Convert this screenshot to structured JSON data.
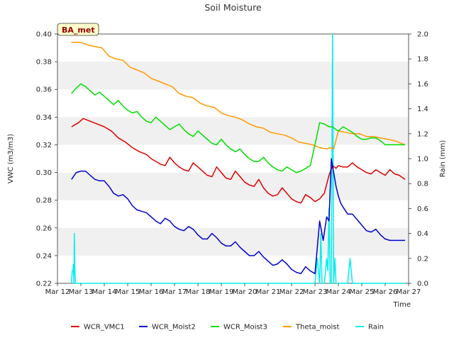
{
  "chart_data": {
    "type": "line",
    "title": "Soil Moisture",
    "site_label": "BA_met",
    "xlabel": "Time",
    "ylabel_left": "VWC (m3/m3)",
    "ylabel_right": "Rain (mm)",
    "x_ticks": [
      "Mar 12",
      "Mar 13",
      "Mar 14",
      "Mar 15",
      "Mar 16",
      "Mar 17",
      "Mar 18",
      "Mar 19",
      "Mar 20",
      "Mar 21",
      "Mar 22",
      "Mar 23",
      "Mar 24",
      "Mar 25",
      "Mar 26",
      "Mar 27"
    ],
    "xlim": [
      12,
      27
    ],
    "ylim_left": [
      0.22,
      0.4
    ],
    "y_ticks_left": [
      "0.22",
      "0.24",
      "0.26",
      "0.28",
      "0.30",
      "0.32",
      "0.34",
      "0.36",
      "0.38",
      "0.40"
    ],
    "ylim_right": [
      0.0,
      2.0
    ],
    "y_ticks_right": [
      "0.0",
      "0.2",
      "0.4",
      "0.6",
      "0.8",
      "1.0",
      "1.2",
      "1.4",
      "1.6",
      "1.8",
      "2.0"
    ],
    "grid": "horizontal bands",
    "legend_position": "bottom",
    "series": [
      {
        "name": "WCR_VMC1",
        "color": "#dd0000",
        "axis": "left",
        "x": [
          12.6,
          12.9,
          13.1,
          13.4,
          13.7,
          14.0,
          14.3,
          14.6,
          14.9,
          15.2,
          15.5,
          15.8,
          16.0,
          16.2,
          16.4,
          16.6,
          16.8,
          17.0,
          17.2,
          17.4,
          17.6,
          17.8,
          18.0,
          18.2,
          18.4,
          18.6,
          18.8,
          19.0,
          19.2,
          19.4,
          19.6,
          19.8,
          20.0,
          20.2,
          20.4,
          20.6,
          20.8,
          21.0,
          21.2,
          21.4,
          21.6,
          21.8,
          22.0,
          22.2,
          22.4,
          22.6,
          22.8,
          23.0,
          23.2,
          23.4,
          23.6,
          23.75,
          23.9,
          24.0,
          24.2,
          24.4,
          24.6,
          24.8,
          25.0,
          25.2,
          25.4,
          25.6,
          25.8,
          26.0,
          26.2,
          26.4,
          26.6,
          26.85
        ],
        "y": [
          0.333,
          0.336,
          0.339,
          0.337,
          0.335,
          0.333,
          0.33,
          0.325,
          0.322,
          0.318,
          0.315,
          0.313,
          0.31,
          0.308,
          0.306,
          0.305,
          0.311,
          0.307,
          0.304,
          0.302,
          0.301,
          0.307,
          0.304,
          0.301,
          0.298,
          0.297,
          0.304,
          0.3,
          0.296,
          0.295,
          0.301,
          0.297,
          0.293,
          0.291,
          0.29,
          0.295,
          0.289,
          0.285,
          0.283,
          0.284,
          0.289,
          0.285,
          0.281,
          0.279,
          0.278,
          0.284,
          0.282,
          0.279,
          0.281,
          0.285,
          0.298,
          0.305,
          0.303,
          0.305,
          0.304,
          0.304,
          0.307,
          0.304,
          0.302,
          0.3,
          0.299,
          0.302,
          0.3,
          0.298,
          0.302,
          0.299,
          0.298,
          0.295
        ]
      },
      {
        "name": "WCR_Moist2",
        "color": "#0000cc",
        "axis": "left",
        "x": [
          12.6,
          12.8,
          13.0,
          13.2,
          13.4,
          13.6,
          13.8,
          14.0,
          14.2,
          14.4,
          14.6,
          14.8,
          15.0,
          15.2,
          15.4,
          15.6,
          15.8,
          16.0,
          16.2,
          16.4,
          16.6,
          16.8,
          17.0,
          17.2,
          17.4,
          17.6,
          17.8,
          18.0,
          18.2,
          18.4,
          18.6,
          18.8,
          19.0,
          19.2,
          19.4,
          19.6,
          19.8,
          20.0,
          20.2,
          20.4,
          20.6,
          20.8,
          21.0,
          21.2,
          21.4,
          21.6,
          21.8,
          22.0,
          22.2,
          22.4,
          22.6,
          22.8,
          23.0,
          23.2,
          23.35,
          23.5,
          23.6,
          23.7,
          23.8,
          23.9,
          24.0,
          24.1,
          24.2,
          24.4,
          24.6,
          24.8,
          25.0,
          25.2,
          25.4,
          25.6,
          25.8,
          26.0,
          26.2,
          26.4,
          26.6,
          26.85
        ],
        "y": [
          0.295,
          0.3,
          0.301,
          0.301,
          0.298,
          0.295,
          0.294,
          0.294,
          0.29,
          0.285,
          0.283,
          0.284,
          0.281,
          0.276,
          0.273,
          0.272,
          0.271,
          0.268,
          0.265,
          0.263,
          0.267,
          0.265,
          0.261,
          0.259,
          0.258,
          0.261,
          0.259,
          0.255,
          0.252,
          0.252,
          0.256,
          0.253,
          0.249,
          0.247,
          0.247,
          0.25,
          0.246,
          0.243,
          0.24,
          0.24,
          0.243,
          0.239,
          0.236,
          0.233,
          0.234,
          0.237,
          0.234,
          0.23,
          0.228,
          0.227,
          0.232,
          0.229,
          0.227,
          0.265,
          0.251,
          0.268,
          0.265,
          0.31,
          0.3,
          0.29,
          0.283,
          0.278,
          0.275,
          0.27,
          0.27,
          0.266,
          0.262,
          0.258,
          0.257,
          0.259,
          0.255,
          0.252,
          0.251,
          0.251,
          0.251,
          0.251
        ]
      },
      {
        "name": "WCR_Moist3",
        "color": "#00dd00",
        "axis": "left",
        "x": [
          12.6,
          12.8,
          13.0,
          13.2,
          13.4,
          13.6,
          13.8,
          14.0,
          14.2,
          14.4,
          14.6,
          14.8,
          15.0,
          15.2,
          15.4,
          15.6,
          15.8,
          16.0,
          16.2,
          16.4,
          16.6,
          16.8,
          17.0,
          17.2,
          17.4,
          17.6,
          17.8,
          18.0,
          18.2,
          18.4,
          18.6,
          18.8,
          19.0,
          19.2,
          19.4,
          19.6,
          19.8,
          20.0,
          20.2,
          20.4,
          20.6,
          20.8,
          21.0,
          21.2,
          21.4,
          21.6,
          21.8,
          22.0,
          22.2,
          22.4,
          22.6,
          22.8,
          23.0,
          23.2,
          23.4,
          23.6,
          23.75,
          23.9,
          24.0,
          24.2,
          24.4,
          24.6,
          24.8,
          25.0,
          25.2,
          25.4,
          25.6,
          25.8,
          26.0,
          26.2,
          26.4,
          26.6,
          26.85
        ],
        "y": [
          0.357,
          0.361,
          0.364,
          0.362,
          0.359,
          0.356,
          0.358,
          0.355,
          0.352,
          0.349,
          0.352,
          0.348,
          0.345,
          0.343,
          0.344,
          0.34,
          0.337,
          0.336,
          0.34,
          0.337,
          0.334,
          0.331,
          0.333,
          0.335,
          0.331,
          0.328,
          0.326,
          0.33,
          0.327,
          0.324,
          0.321,
          0.32,
          0.324,
          0.32,
          0.317,
          0.315,
          0.317,
          0.313,
          0.31,
          0.308,
          0.308,
          0.311,
          0.307,
          0.304,
          0.302,
          0.301,
          0.304,
          0.302,
          0.3,
          0.301,
          0.303,
          0.305,
          0.32,
          0.336,
          0.335,
          0.333,
          0.333,
          0.331,
          0.33,
          0.333,
          0.331,
          0.329,
          0.326,
          0.324,
          0.324,
          0.325,
          0.325,
          0.323,
          0.32,
          0.32,
          0.32,
          0.32,
          0.32
        ]
      },
      {
        "name": "Theta_moist",
        "color": "#ff9900",
        "axis": "left",
        "x": [
          12.6,
          13.0,
          13.3,
          13.6,
          13.9,
          14.2,
          14.5,
          14.8,
          15.1,
          15.4,
          15.7,
          16.0,
          16.3,
          16.6,
          16.9,
          17.2,
          17.5,
          17.8,
          18.1,
          18.4,
          18.7,
          19.0,
          19.3,
          19.6,
          19.9,
          20.2,
          20.5,
          20.8,
          21.1,
          21.4,
          21.7,
          22.0,
          22.3,
          22.6,
          22.9,
          23.2,
          23.5,
          23.65,
          23.8,
          24.0,
          24.3,
          24.6,
          24.9,
          25.2,
          25.5,
          25.8,
          26.1,
          26.4,
          26.85
        ],
        "y": [
          0.394,
          0.394,
          0.392,
          0.391,
          0.39,
          0.384,
          0.382,
          0.381,
          0.376,
          0.374,
          0.372,
          0.368,
          0.366,
          0.364,
          0.362,
          0.357,
          0.355,
          0.354,
          0.35,
          0.348,
          0.347,
          0.343,
          0.341,
          0.34,
          0.338,
          0.335,
          0.333,
          0.332,
          0.329,
          0.328,
          0.327,
          0.325,
          0.322,
          0.321,
          0.32,
          0.318,
          0.317,
          0.318,
          0.317,
          0.33,
          0.329,
          0.328,
          0.328,
          0.326,
          0.326,
          0.325,
          0.324,
          0.323,
          0.32
        ]
      },
      {
        "name": "Rain",
        "color": "#00eeee",
        "axis": "right",
        "x": [
          12.6,
          12.63,
          12.66,
          12.68,
          12.7,
          12.72,
          12.74,
          12.77,
          12.8,
          22.7,
          23.0,
          23.1,
          23.2,
          23.25,
          23.3,
          23.4,
          23.5,
          23.55,
          23.6,
          23.65,
          23.7,
          23.75,
          23.8,
          23.85,
          23.9,
          23.95,
          24.0,
          24.4,
          24.5,
          24.55,
          24.6,
          24.65,
          24.7,
          26.85
        ],
        "y": [
          0.0,
          0.1,
          0.1,
          0.15,
          0.0,
          0.4,
          0.15,
          0.0,
          0.0,
          0.0,
          0.0,
          0.2,
          0.0,
          0.4,
          0.0,
          0.0,
          0.2,
          0.1,
          0.6,
          0.0,
          0.0,
          2.0,
          0.0,
          0.2,
          0.0,
          0.0,
          0.0,
          0.0,
          0.2,
          0.1,
          0.0,
          0.0,
          0.0,
          0.0
        ]
      }
    ]
  }
}
